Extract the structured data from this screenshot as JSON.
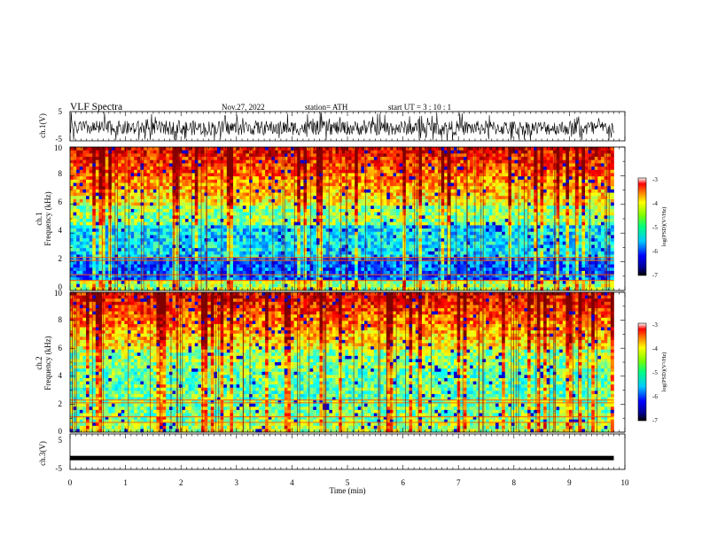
{
  "header": {
    "title": "VLF  Spectra",
    "date": "Nov.27, 2022",
    "station": "station= ATH",
    "start": "start  UT  =    3   : 10 : 1"
  },
  "chart_data": [
    {
      "type": "line",
      "name": "ch1-waveform",
      "ylabel": "ch.1(V)",
      "ylim": [
        -5,
        5
      ],
      "yticks": [
        "5",
        "-5"
      ],
      "xlim": [
        0,
        10
      ]
    },
    {
      "type": "heatmap",
      "name": "ch1-spectrogram",
      "ylabel_top": "ch.1",
      "ylabel": "Frequency  (kHz)",
      "ylim": [
        0,
        10
      ],
      "yticks": [
        "0",
        "2",
        "4",
        "6",
        "8",
        "10"
      ],
      "xlim": [
        0,
        9.8
      ],
      "colorbar": {
        "label": "log(PSD)(V²/Hz)",
        "ticks": [
          "-3",
          "-4",
          "-5",
          "-6",
          "-7"
        ],
        "range": [
          -7,
          -3
        ]
      }
    },
    {
      "type": "heatmap",
      "name": "ch2-spectrogram",
      "ylabel_top": "ch.2",
      "ylabel": "Frequency  (kHz)",
      "ylim": [
        0,
        10
      ],
      "yticks": [
        "0",
        "2",
        "4",
        "6",
        "8",
        "10"
      ],
      "xlim": [
        0,
        9.8
      ],
      "colorbar": {
        "label": "log(PSD)(V²/Hz)",
        "ticks": [
          "-3",
          "-4",
          "-5",
          "-6",
          "-7"
        ],
        "range": [
          -7,
          -3
        ]
      }
    },
    {
      "type": "line",
      "name": "ch3-waveform",
      "ylabel": "ch.3(V)",
      "ylim": [
        -5,
        5
      ],
      "yticks": [
        "5",
        "-5"
      ],
      "xlim": [
        0,
        10
      ],
      "value": -1.8
    }
  ],
  "xaxis": {
    "label": "Time  (min)",
    "ticks": [
      "0",
      "1",
      "2",
      "3",
      "4",
      "5",
      "6",
      "7",
      "8",
      "9",
      "10"
    ],
    "range": [
      0,
      10
    ]
  }
}
